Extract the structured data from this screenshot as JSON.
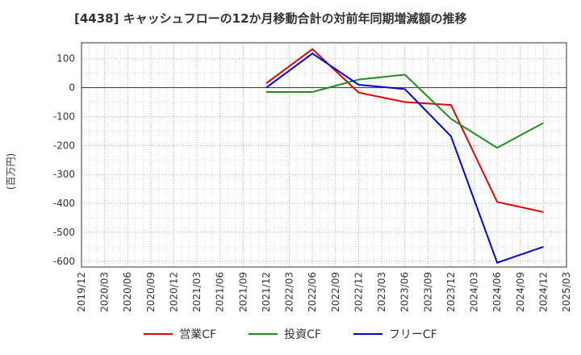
{
  "chart_data": {
    "type": "line",
    "title": "[4438]  キャッシュフローの12か月移動合計の対前年同期増減額の推移",
    "ylabel": "(百万円)",
    "xlabel": "",
    "categories": [
      "2019/12",
      "2020/03",
      "2020/06",
      "2020/09",
      "2020/12",
      "2021/03",
      "2021/06",
      "2021/09",
      "2021/12",
      "2022/03",
      "2022/06",
      "2022/09",
      "2022/12",
      "2023/03",
      "2023/06",
      "2023/09",
      "2023/12",
      "2024/03",
      "2024/06",
      "2024/09",
      "2024/12",
      "2025/03"
    ],
    "yticks": [
      100,
      0,
      -100,
      -200,
      -300,
      -400,
      -500,
      -600
    ],
    "ylim": [
      -620,
      155
    ],
    "grid": true,
    "legend_position": "bottom",
    "series": [
      {
        "name": "営業CF",
        "color": "#e00000",
        "points": [
          [
            "2021/12",
            15
          ],
          [
            "2022/06",
            133
          ],
          [
            "2022/12",
            -17
          ],
          [
            "2023/06",
            -50
          ],
          [
            "2023/12",
            -60
          ],
          [
            "2024/06",
            -395
          ],
          [
            "2024/12",
            -430
          ]
        ]
      },
      {
        "name": "投資CF",
        "color": "#228b22",
        "points": [
          [
            "2021/12",
            -15
          ],
          [
            "2022/06",
            -15
          ],
          [
            "2022/12",
            28
          ],
          [
            "2023/06",
            45
          ],
          [
            "2023/12",
            -108
          ],
          [
            "2024/06",
            -208
          ],
          [
            "2024/12",
            -122
          ]
        ]
      },
      {
        "name": "フリーCF",
        "color": "#0000dd",
        "points": [
          [
            "2021/12",
            0
          ],
          [
            "2022/06",
            118
          ],
          [
            "2022/12",
            10
          ],
          [
            "2023/06",
            -5
          ],
          [
            "2023/12",
            -168
          ],
          [
            "2024/06",
            -605
          ],
          [
            "2024/12",
            -550
          ]
        ]
      }
    ]
  }
}
